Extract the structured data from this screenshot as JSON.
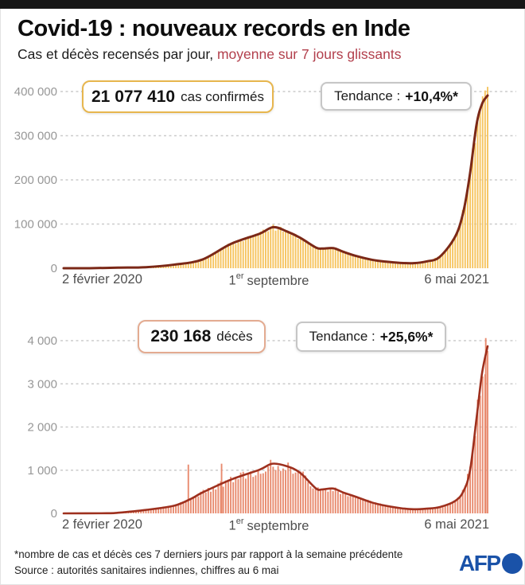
{
  "ui": {
    "title": "Covid-19 : nouveaux records en Inde",
    "subtitle_plain": "Cas et décès recensés par jour, ",
    "subtitle_accent": "moyenne sur 7 jours glissants",
    "accent_color": "#b23f4c",
    "charts": [
      {
        "badge_value": "21 077 410",
        "badge_label": "cas confirmés",
        "badge_border_color": "#e7b64e",
        "trend_label": "Tendance :",
        "trend_value": "+10,4%*",
        "x_left": "2 février 2020",
        "x_mid_base": "1",
        "x_mid_sup": "er",
        "x_mid_rest": "septembre",
        "x_right": "6 mai 2021"
      },
      {
        "badge_value": "230 168",
        "badge_label": "décès",
        "badge_border_color": "#e3ab91",
        "trend_label": "Tendance :",
        "trend_value": "+25,6%*",
        "x_left": "2 février 2020",
        "x_mid_base": "1",
        "x_mid_sup": "er",
        "x_mid_rest": "septembre",
        "x_right": "6 mai 2021"
      }
    ],
    "footnote": "*nombre de cas et décès ces 7 derniers jours par rapport à la semaine précédente",
    "source": "Source : autorités sanitaires indiennes, chiffres au 6 mai",
    "logo_text": "AFP",
    "logo_color": "#1a52a8"
  },
  "chart_data": [
    {
      "type": "bar",
      "overlay": "line",
      "title": "21 077 410 cas confirmés",
      "trend": "Tendance : +10,4%*",
      "series_name": "nouveaux cas quotidiens, moyenne sur 7 jours glissants",
      "x_range": [
        "2020-02-02",
        "2021-05-06"
      ],
      "x_tick_labels": [
        "2 février 2020",
        "1er septembre",
        "6 mai 2021"
      ],
      "ymax": 400000,
      "ylim": [
        0,
        400000
      ],
      "grid": "dashed-horizontal",
      "bar_color": "#f6c45f",
      "line_color": "#7b2817",
      "y_ticks": [
        {
          "v": 400000,
          "label": "400 000"
        },
        {
          "v": 300000,
          "label": "300 000"
        },
        {
          "v": 200000,
          "label": "200 000"
        },
        {
          "v": 100000,
          "label": "100 000"
        },
        {
          "v": 0,
          "label": "0"
        }
      ],
      "points": [
        [
          "2020-02-02",
          0
        ],
        [
          "2020-03-01",
          60
        ],
        [
          "2020-04-01",
          1300
        ],
        [
          "2020-05-01",
          2300
        ],
        [
          "2020-06-01",
          8200
        ],
        [
          "2020-07-01",
          19500
        ],
        [
          "2020-08-01",
          55000
        ],
        [
          "2020-09-01",
          78000
        ],
        [
          "2020-09-16",
          93000
        ],
        [
          "2020-10-01",
          83000
        ],
        [
          "2020-10-15",
          69000
        ],
        [
          "2020-11-01",
          47000
        ],
        [
          "2020-11-08",
          44500
        ],
        [
          "2020-11-20",
          45500
        ],
        [
          "2020-12-01",
          37000
        ],
        [
          "2020-12-15",
          27500
        ],
        [
          "2021-01-01",
          19000
        ],
        [
          "2021-01-15",
          15000
        ],
        [
          "2021-02-01",
          12000
        ],
        [
          "2021-02-15",
          11500
        ],
        [
          "2021-03-01",
          15500
        ],
        [
          "2021-03-15",
          25500
        ],
        [
          "2021-04-01",
          72000
        ],
        [
          "2021-04-10",
          130000
        ],
        [
          "2021-04-17",
          215000
        ],
        [
          "2021-04-24",
          325000
        ],
        [
          "2021-04-30",
          372000
        ],
        [
          "2021-05-06",
          391000
        ]
      ],
      "spikes": []
    },
    {
      "type": "bar",
      "overlay": "line",
      "title": "230 168 décès",
      "trend": "Tendance : +25,6%*",
      "series_name": "décès quotidiens, moyenne sur 7 jours glissants",
      "x_range": [
        "2020-02-02",
        "2021-05-06"
      ],
      "x_tick_labels": [
        "2 février 2020",
        "1er septembre",
        "6 mai 2021"
      ],
      "ymax": 4000,
      "ylim": [
        0,
        4000
      ],
      "grid": "dashed-horizontal",
      "bar_color": "#e88a6e",
      "line_color": "#9e301e",
      "y_ticks": [
        {
          "v": 4000,
          "label": "4 000"
        },
        {
          "v": 3000,
          "label": "3 000"
        },
        {
          "v": 2000,
          "label": "2 000"
        },
        {
          "v": 1000,
          "label": "1 000"
        },
        {
          "v": 0,
          "label": "0"
        }
      ],
      "points": [
        [
          "2020-02-02",
          0
        ],
        [
          "2020-03-20",
          3
        ],
        [
          "2020-04-01",
          15
        ],
        [
          "2020-05-01",
          80
        ],
        [
          "2020-06-01",
          180
        ],
        [
          "2020-06-20",
          350
        ],
        [
          "2020-07-01",
          480
        ],
        [
          "2020-08-01",
          780
        ],
        [
          "2020-09-01",
          1010
        ],
        [
          "2020-09-15",
          1150
        ],
        [
          "2020-10-01",
          1090
        ],
        [
          "2020-10-15",
          940
        ],
        [
          "2020-11-01",
          580
        ],
        [
          "2020-11-08",
          555
        ],
        [
          "2020-11-20",
          575
        ],
        [
          "2020-12-01",
          480
        ],
        [
          "2020-12-15",
          380
        ],
        [
          "2021-01-01",
          250
        ],
        [
          "2021-01-15",
          180
        ],
        [
          "2021-02-01",
          120
        ],
        [
          "2021-02-15",
          95
        ],
        [
          "2021-03-01",
          110
        ],
        [
          "2021-03-15",
          145
        ],
        [
          "2021-04-01",
          290
        ],
        [
          "2021-04-10",
          520
        ],
        [
          "2021-04-17",
          1000
        ],
        [
          "2021-04-24",
          2200
        ],
        [
          "2021-04-30",
          3250
        ],
        [
          "2021-05-06",
          3870
        ]
      ],
      "spikes": [
        [
          "2020-06-16",
          1130
        ],
        [
          "2020-07-22",
          1150
        ],
        [
          "2021-05-04",
          4060
        ]
      ]
    }
  ]
}
